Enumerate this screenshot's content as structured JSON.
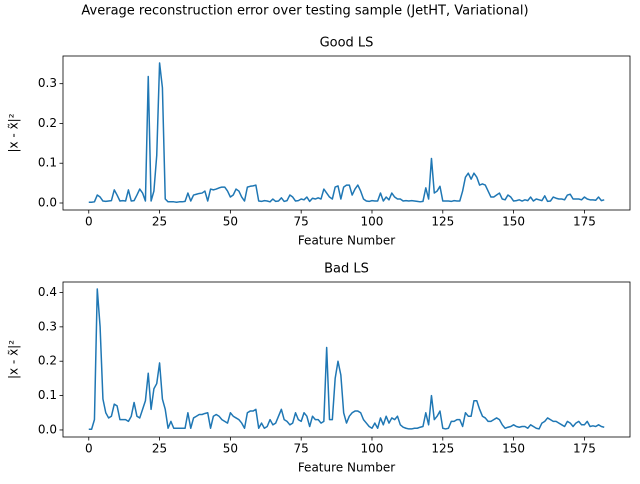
{
  "title": "Average reconstruction error over testing sample (JetHT, Variational)",
  "chart_data": [
    {
      "type": "line",
      "title": "Good LS",
      "xlabel": "Feature Number",
      "ylabel": "|x - x̃|²",
      "color": "#1f77b4",
      "x": [
        0,
        1,
        2,
        3,
        4,
        5,
        6,
        7,
        8,
        9,
        10,
        11,
        12,
        13,
        14,
        15,
        16,
        17,
        18,
        19,
        20,
        21,
        22,
        23,
        24,
        25,
        26,
        27,
        28,
        29,
        30,
        31,
        32,
        33,
        34,
        35,
        36,
        37,
        38,
        39,
        40,
        41,
        42,
        43,
        44,
        45,
        46,
        47,
        48,
        49,
        50,
        51,
        52,
        53,
        54,
        55,
        56,
        57,
        58,
        59,
        60,
        61,
        62,
        63,
        64,
        65,
        66,
        67,
        68,
        69,
        70,
        71,
        72,
        73,
        74,
        75,
        76,
        77,
        78,
        79,
        80,
        81,
        82,
        83,
        84,
        85,
        86,
        87,
        88,
        89,
        90,
        91,
        92,
        93,
        94,
        95,
        96,
        97,
        98,
        99,
        100,
        101,
        102,
        103,
        104,
        105,
        106,
        107,
        108,
        109,
        110,
        111,
        112,
        113,
        114,
        115,
        116,
        117,
        118,
        119,
        120,
        121,
        122,
        123,
        124,
        125,
        126,
        127,
        128,
        129,
        130,
        131,
        132,
        133,
        134,
        135,
        136,
        137,
        138,
        139,
        140,
        141,
        142,
        143,
        144,
        145,
        146,
        147,
        148,
        149,
        150,
        151,
        152,
        153,
        154,
        155,
        156,
        157,
        158,
        159,
        160,
        161,
        162,
        163,
        164,
        165,
        166,
        167,
        168,
        169,
        170,
        171,
        172,
        173,
        174,
        175,
        176,
        177,
        178,
        179,
        180,
        181,
        182
      ],
      "values": [
        0.002,
        0.002,
        0.003,
        0.02,
        0.015,
        0.005,
        0.004,
        0.005,
        0.006,
        0.033,
        0.02,
        0.005,
        0.006,
        0.005,
        0.033,
        0.005,
        0.006,
        0.02,
        0.035,
        0.025,
        0.005,
        0.318,
        0.005,
        0.03,
        0.12,
        0.352,
        0.29,
        0.01,
        0.003,
        0.003,
        0.003,
        0.002,
        0.003,
        0.003,
        0.004,
        0.025,
        0.005,
        0.02,
        0.022,
        0.024,
        0.025,
        0.03,
        0.005,
        0.035,
        0.033,
        0.035,
        0.038,
        0.04,
        0.04,
        0.03,
        0.015,
        0.02,
        0.035,
        0.03,
        0.015,
        0.005,
        0.04,
        0.042,
        0.043,
        0.045,
        0.005,
        0.004,
        0.006,
        0.005,
        0.003,
        0.01,
        0.004,
        0.005,
        0.013,
        0.004,
        0.006,
        0.02,
        0.015,
        0.005,
        0.006,
        0.01,
        0.008,
        0.015,
        0.004,
        0.012,
        0.01,
        0.013,
        0.01,
        0.035,
        0.025,
        0.015,
        0.01,
        0.04,
        0.043,
        0.01,
        0.04,
        0.045,
        0.045,
        0.02,
        0.035,
        0.045,
        0.03,
        0.01,
        0.005,
        0.004,
        0.006,
        0.005,
        0.005,
        0.025,
        0.005,
        0.015,
        0.008,
        0.025,
        0.015,
        0.01,
        0.01,
        0.005,
        0.006,
        0.005,
        0.006,
        0.005,
        0.004,
        0.003,
        0.004,
        0.038,
        0.01,
        0.112,
        0.025,
        0.03,
        0.042,
        0.005,
        0.005,
        0.005,
        0.004,
        0.006,
        0.005,
        0.005,
        0.03,
        0.065,
        0.075,
        0.06,
        0.075,
        0.065,
        0.045,
        0.048,
        0.045,
        0.03,
        0.015,
        0.015,
        0.02,
        0.025,
        0.01,
        0.008,
        0.02,
        0.015,
        0.005,
        0.006,
        0.008,
        0.005,
        0.008,
        0.006,
        0.015,
        0.005,
        0.01,
        0.008,
        0.006,
        0.018,
        0.004,
        0.005,
        0.015,
        0.012,
        0.01,
        0.01,
        0.008,
        0.02,
        0.022,
        0.01,
        0.01,
        0.01,
        0.008,
        0.015,
        0.01,
        0.008,
        0.008,
        0.007,
        0.015,
        0.006,
        0.008
      ],
      "xlim": [
        -9.1,
        191.1
      ],
      "xticks": [
        0,
        25,
        50,
        75,
        100,
        125,
        150,
        175
      ],
      "ylim": [
        -0.0176,
        0.3696
      ],
      "yticks": [
        {
          "value": 0,
          "label": "0.0"
        },
        0.1,
        0.2,
        0.3
      ]
    },
    {
      "type": "line",
      "title": "Bad LS",
      "xlabel": "Feature Number",
      "ylabel": "|x - x̃|²",
      "color": "#1f77b4",
      "x": [
        0,
        1,
        2,
        3,
        4,
        5,
        6,
        7,
        8,
        9,
        10,
        11,
        12,
        13,
        14,
        15,
        16,
        17,
        18,
        19,
        20,
        21,
        22,
        23,
        24,
        25,
        26,
        27,
        28,
        29,
        30,
        31,
        32,
        33,
        34,
        35,
        36,
        37,
        38,
        39,
        40,
        41,
        42,
        43,
        44,
        45,
        46,
        47,
        48,
        49,
        50,
        51,
        52,
        53,
        54,
        55,
        56,
        57,
        58,
        59,
        60,
        61,
        62,
        63,
        64,
        65,
        66,
        67,
        68,
        69,
        70,
        71,
        72,
        73,
        74,
        75,
        76,
        77,
        78,
        79,
        80,
        81,
        82,
        83,
        84,
        85,
        86,
        87,
        88,
        89,
        90,
        91,
        92,
        93,
        94,
        95,
        96,
        97,
        98,
        99,
        100,
        101,
        102,
        103,
        104,
        105,
        106,
        107,
        108,
        109,
        110,
        111,
        112,
        113,
        114,
        115,
        116,
        117,
        118,
        119,
        120,
        121,
        122,
        123,
        124,
        125,
        126,
        127,
        128,
        129,
        130,
        131,
        132,
        133,
        134,
        135,
        136,
        137,
        138,
        139,
        140,
        141,
        142,
        143,
        144,
        145,
        146,
        147,
        148,
        149,
        150,
        151,
        152,
        153,
        154,
        155,
        156,
        157,
        158,
        159,
        160,
        161,
        162,
        163,
        164,
        165,
        166,
        167,
        168,
        169,
        170,
        171,
        172,
        173,
        174,
        175,
        176,
        177,
        178,
        179,
        180,
        181,
        182
      ],
      "values": [
        0.002,
        0.002,
        0.03,
        0.41,
        0.3,
        0.09,
        0.05,
        0.035,
        0.04,
        0.075,
        0.07,
        0.03,
        0.03,
        0.03,
        0.025,
        0.04,
        0.08,
        0.04,
        0.035,
        0.06,
        0.085,
        0.165,
        0.06,
        0.12,
        0.135,
        0.195,
        0.09,
        0.06,
        0.005,
        0.025,
        0.005,
        0.005,
        0.005,
        0.005,
        0.005,
        0.05,
        0.005,
        0.035,
        0.04,
        0.045,
        0.045,
        0.048,
        0.05,
        0.005,
        0.04,
        0.045,
        0.04,
        0.03,
        0.025,
        0.02,
        0.05,
        0.04,
        0.035,
        0.03,
        0.02,
        0.005,
        0.05,
        0.055,
        0.055,
        0.06,
        0.005,
        0.02,
        0.005,
        0.01,
        0.03,
        0.015,
        0.02,
        0.04,
        0.06,
        0.03,
        0.025,
        0.015,
        0.02,
        0.05,
        0.03,
        0.025,
        0.05,
        0.04,
        0.01,
        0.04,
        0.03,
        0.03,
        0.02,
        0.025,
        0.24,
        0.03,
        0.03,
        0.15,
        0.2,
        0.16,
        0.05,
        0.02,
        0.04,
        0.05,
        0.055,
        0.055,
        0.05,
        0.03,
        0.02,
        0.01,
        0.005,
        0.02,
        0.005,
        0.035,
        0.015,
        0.04,
        0.02,
        0.035,
        0.03,
        0.04,
        0.015,
        0.008,
        0.005,
        0.003,
        0.003,
        0.005,
        0.005,
        0.008,
        0.01,
        0.05,
        0.015,
        0.1,
        0.03,
        0.04,
        0.055,
        0.005,
        0.003,
        0.005,
        0.025,
        0.025,
        0.03,
        0.03,
        0.01,
        0.05,
        0.04,
        0.04,
        0.085,
        0.085,
        0.06,
        0.04,
        0.035,
        0.025,
        0.025,
        0.03,
        0.035,
        0.03,
        0.015,
        0.005,
        0.008,
        0.01,
        0.015,
        0.01,
        0.008,
        0.01,
        0.01,
        0.005,
        0.015,
        0.01,
        0.005,
        0.003,
        0.02,
        0.025,
        0.035,
        0.03,
        0.025,
        0.025,
        0.02,
        0.015,
        0.01,
        0.025,
        0.02,
        0.01,
        0.02,
        0.025,
        0.015,
        0.015,
        0.025,
        0.01,
        0.012,
        0.01,
        0.015,
        0.01,
        0.008
      ],
      "xlim": [
        -9.1,
        191.1
      ],
      "xticks": [
        0,
        25,
        50,
        75,
        100,
        125,
        150,
        175
      ],
      "ylim": [
        -0.0205,
        0.4305
      ],
      "yticks": [
        {
          "value": 0,
          "label": "0.0"
        },
        0.1,
        0.2,
        0.3,
        0.4
      ]
    }
  ]
}
